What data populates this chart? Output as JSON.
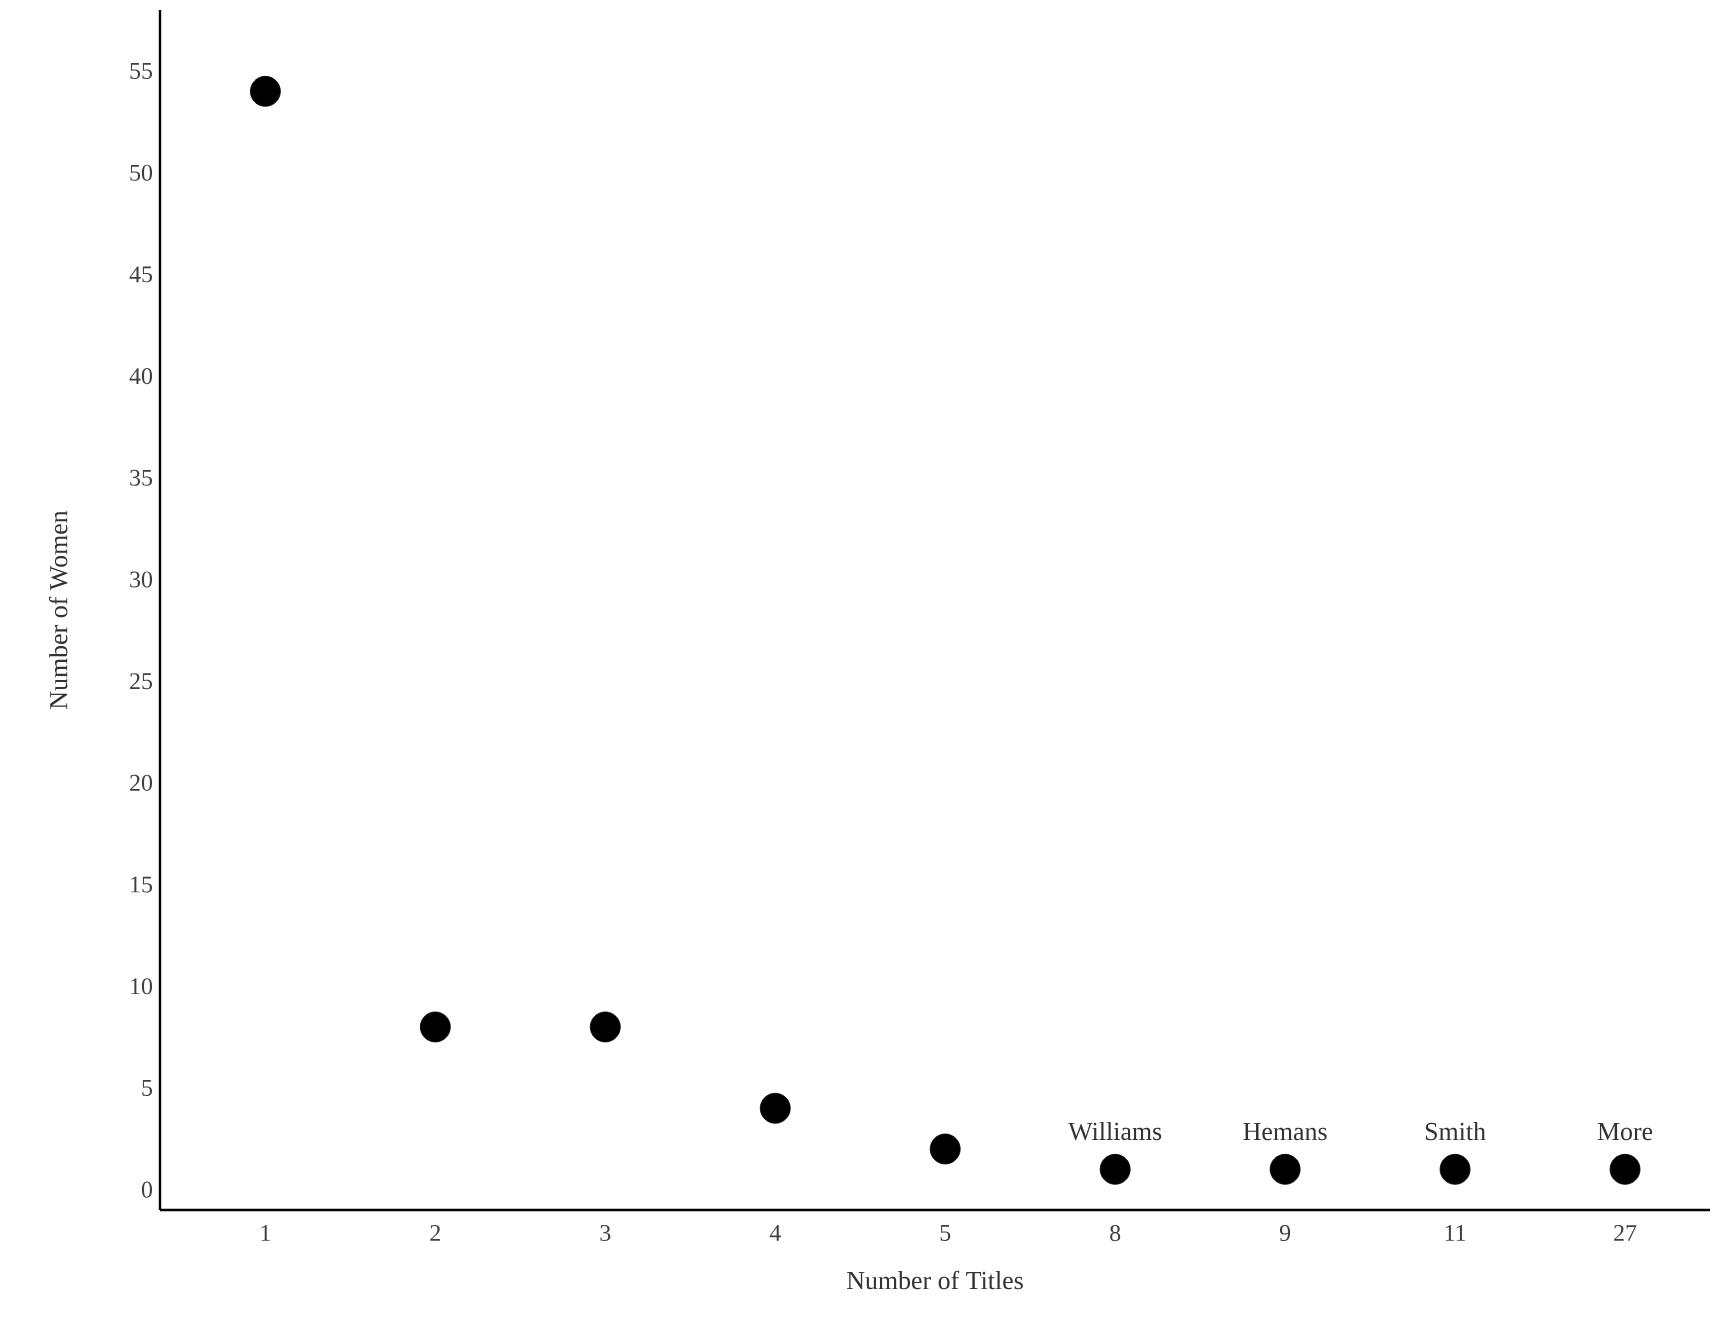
{
  "chart_data": {
    "type": "scatter",
    "xlabel": "Number of Titles",
    "ylabel": "Number of Women",
    "categories": [
      "1",
      "2",
      "3",
      "4",
      "5",
      "8",
      "9",
      "11",
      "27"
    ],
    "series": [
      {
        "color": "#000000",
        "values": [
          54,
          8,
          8,
          4,
          2,
          1,
          1,
          1,
          1
        ]
      }
    ],
    "ylim": [
      -1,
      58
    ],
    "yticks": [
      0,
      5,
      10,
      15,
      20,
      25,
      30,
      35,
      40,
      45,
      50,
      55
    ],
    "grid": false,
    "annotations": [
      {
        "text": "Williams",
        "x": "8",
        "y": 1
      },
      {
        "text": "Hemans",
        "x": "9",
        "y": 1
      },
      {
        "text": "Smith",
        "x": "11",
        "y": 1
      },
      {
        "text": "More",
        "x": "27",
        "y": 1
      }
    ]
  }
}
